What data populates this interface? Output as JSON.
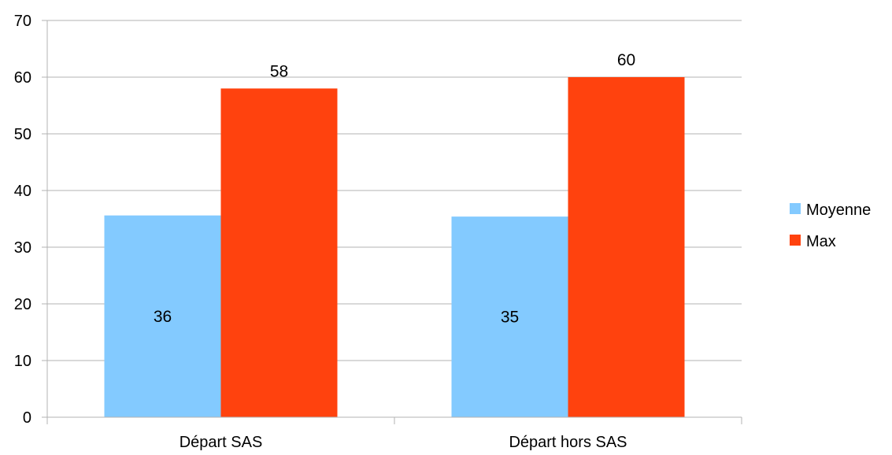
{
  "chart_data": {
    "type": "bar",
    "categories": [
      "Départ SAS",
      "Départ hors SAS"
    ],
    "series": [
      {
        "name": "Moyenne",
        "values": [
          35.6,
          35.4
        ],
        "labels": [
          "36",
          "35"
        ],
        "color": "#83CAFF"
      },
      {
        "name": "Max",
        "values": [
          58,
          60
        ],
        "labels": [
          "58",
          "60"
        ],
        "color": "#FF420E"
      }
    ],
    "ylim": [
      0,
      70
    ],
    "yticks": [
      "0",
      "10",
      "20",
      "30",
      "40",
      "50",
      "60",
      "70"
    ],
    "grid": true,
    "legend_position": "right",
    "gridline_color": "#B3B3B3",
    "axis_color": "#B3B3B3"
  }
}
